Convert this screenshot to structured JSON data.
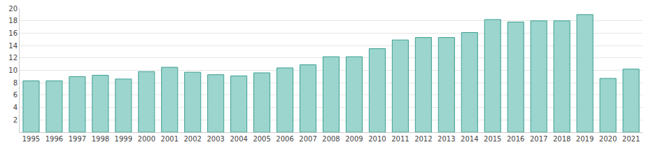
{
  "chart_data": {
    "type": "bar",
    "categories": [
      "1995",
      "1996",
      "1997",
      "1998",
      "1999",
      "2000",
      "2001",
      "2002",
      "2003",
      "2004",
      "2005",
      "2006",
      "2007",
      "2008",
      "2009",
      "2010",
      "2011",
      "2012",
      "2013",
      "2014",
      "2015",
      "2016",
      "2017",
      "2018",
      "2019",
      "2020",
      "2021"
    ],
    "values": [
      8.3,
      8.3,
      9.0,
      9.2,
      8.6,
      9.8,
      10.5,
      9.7,
      9.3,
      9.1,
      9.6,
      10.4,
      10.9,
      12.2,
      12.2,
      13.5,
      14.9,
      15.3,
      15.3,
      16.1,
      18.2,
      17.8,
      18.0,
      18.0,
      19.0,
      8.7,
      10.2
    ],
    "color": "#9cd5cd",
    "ylim": [
      0,
      20
    ],
    "yticks": [
      2,
      4,
      6,
      8,
      10,
      12,
      14,
      16,
      18,
      20
    ],
    "grid": true
  }
}
